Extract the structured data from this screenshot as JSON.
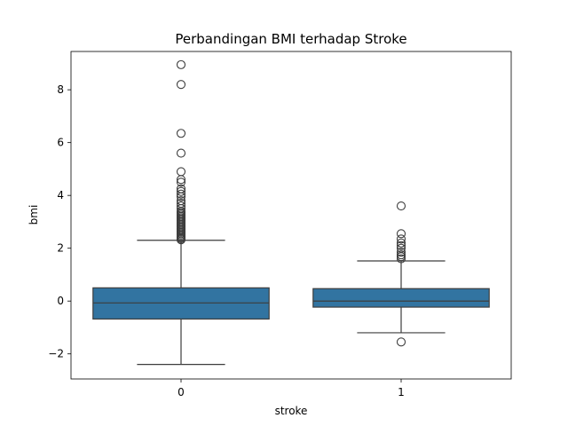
{
  "chart_data": {
    "type": "boxplot",
    "title": "Perbandingan BMI terhadap Stroke",
    "xlabel": "stroke",
    "ylabel": "bmi",
    "ylim": [
      -2.95,
      9.45
    ],
    "y_ticks": [
      -2,
      0,
      2,
      4,
      6,
      8
    ],
    "y_tick_labels": [
      "−2",
      "0",
      "2",
      "4",
      "6",
      "8"
    ],
    "grid": false,
    "box_color": "#3274a1",
    "categories": [
      "0",
      "1"
    ],
    "boxes": [
      {
        "category": "0",
        "whisker_low": -2.4,
        "q1": -0.68,
        "median": -0.07,
        "q3": 0.5,
        "whisker_high": 2.3,
        "outliers": [
          2.32,
          2.36,
          2.4,
          2.45,
          2.5,
          2.55,
          2.6,
          2.65,
          2.7,
          2.75,
          2.8,
          2.85,
          2.9,
          2.95,
          3.0,
          3.05,
          3.1,
          3.15,
          3.2,
          3.25,
          3.3,
          3.35,
          3.4,
          3.5,
          3.6,
          3.7,
          3.8,
          3.95,
          4.05,
          4.15,
          4.25,
          4.5,
          4.6,
          4.9,
          5.6,
          6.35,
          8.2,
          8.95
        ]
      },
      {
        "category": "1",
        "whisker_low": -1.2,
        "q1": -0.23,
        "median": 0.0,
        "q3": 0.47,
        "whisker_high": 1.52,
        "outliers": [
          -1.55,
          1.6,
          1.68,
          1.75,
          1.85,
          2.0,
          2.1,
          2.2,
          2.35,
          2.55,
          3.6
        ]
      }
    ]
  }
}
